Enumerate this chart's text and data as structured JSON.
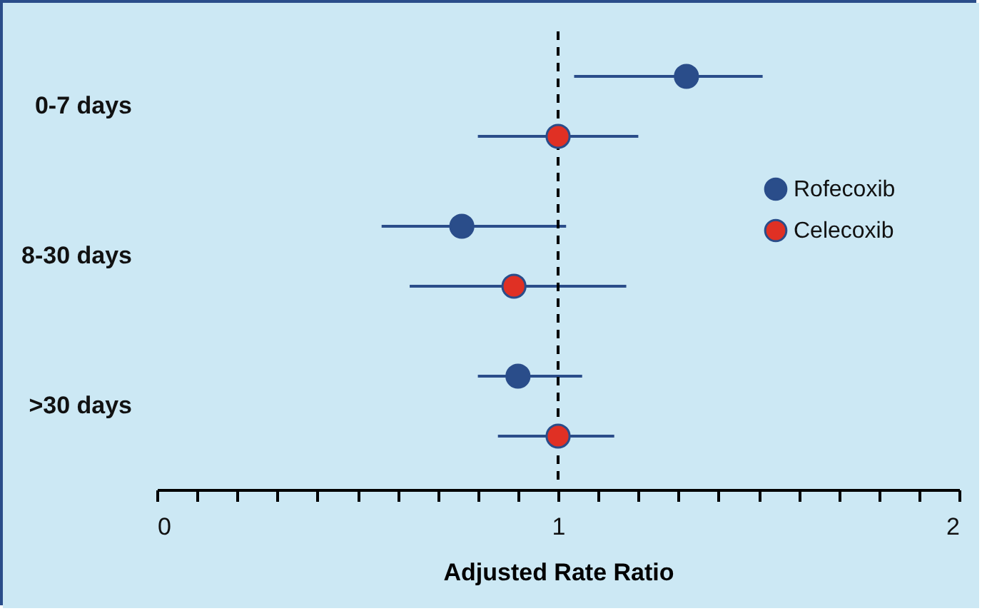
{
  "chart_data": {
    "type": "scatter",
    "orientation": "horizontal",
    "xlabel": "Adjusted Rate Ratio",
    "categories": [
      "0-7 days",
      "8-30 days",
      ">30 days"
    ],
    "series": [
      {
        "name": "Rofecoxib",
        "color": "#2a4d8a",
        "values": [
          1.32,
          0.76,
          0.9
        ],
        "errors": [
          [
            1.04,
            1.51
          ],
          [
            0.56,
            1.02
          ],
          [
            0.8,
            1.06
          ]
        ]
      },
      {
        "name": "Celecoxib",
        "color": "#e03024",
        "values": [
          1.0,
          0.89,
          1.0
        ],
        "errors": [
          [
            0.8,
            1.2
          ],
          [
            0.63,
            1.17
          ],
          [
            0.85,
            1.14
          ]
        ]
      }
    ],
    "xlim": [
      0,
      2
    ],
    "xticks": [
      0,
      {
        "value": 0.1,
        "label": null
      },
      {
        "value": 0.2,
        "label": null
      },
      {
        "value": 0.3,
        "label": null
      },
      {
        "value": 0.4,
        "label": null
      },
      {
        "value": 0.5,
        "label": null
      },
      {
        "value": 0.6,
        "label": null
      },
      {
        "value": 0.7,
        "label": null
      },
      {
        "value": 0.8,
        "label": null
      },
      {
        "value": 0.9,
        "label": null
      },
      1,
      {
        "value": 1.1,
        "label": null
      },
      {
        "value": 1.2,
        "label": null
      },
      {
        "value": 1.3,
        "label": null
      },
      {
        "value": 1.4,
        "label": null
      },
      {
        "value": 1.5,
        "label": null
      },
      {
        "value": 1.6,
        "label": null
      },
      {
        "value": 1.7,
        "label": null
      },
      {
        "value": 1.8,
        "label": null
      },
      {
        "value": 1.9,
        "label": null
      },
      2
    ],
    "ref_lines": [
      {
        "axis": "x",
        "value": 1,
        "line_style": "dashed",
        "color": "#000000"
      }
    ],
    "legend": "right",
    "marker": "circle",
    "grid": false
  }
}
